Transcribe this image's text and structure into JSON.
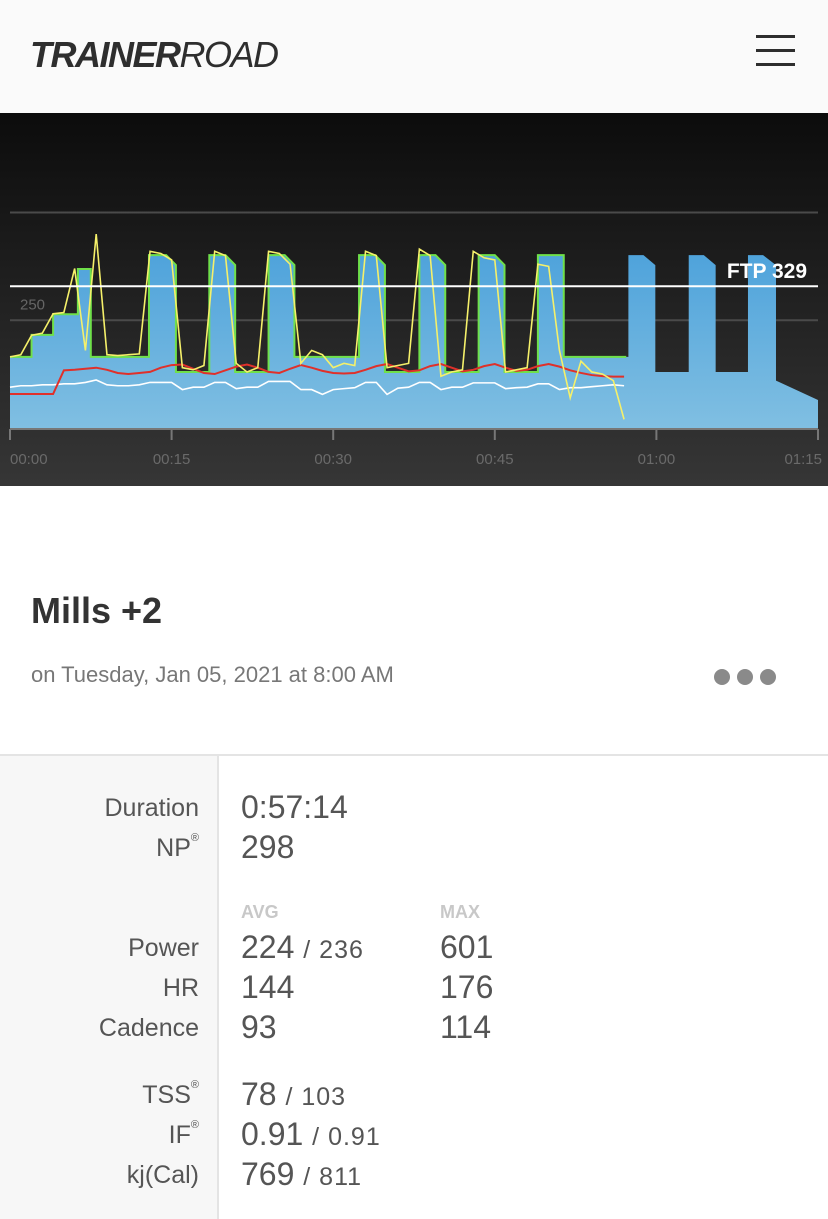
{
  "header": {
    "logo_bold": "TRAINER",
    "logo_light": "ROAD",
    "menu_icon": "hamburger-icon"
  },
  "chart_data": {
    "type": "area",
    "title": "",
    "ftp_label": "FTP 329",
    "ftp": 329,
    "ylim": [
      0,
      505
    ],
    "y_gridlines": [
      250,
      500
    ],
    "y_tick_labels": [
      "250"
    ],
    "xlim": [
      0,
      75
    ],
    "x_ticks": [
      0,
      15,
      30,
      45,
      60,
      75
    ],
    "x_tick_labels": [
      "00:00",
      "00:15",
      "00:30",
      "00:45",
      "01:00",
      "01:15"
    ],
    "xlabel": "",
    "ylabel": "",
    "colors": {
      "target": "#5aaade",
      "target_line": "#6fe04a",
      "power": "#f5f06a",
      "hr": "#e0302a",
      "cadence": "#ffffff"
    },
    "target_profile": [
      [
        0,
        165
      ],
      [
        2,
        165
      ],
      [
        2,
        216
      ],
      [
        4,
        216
      ],
      [
        4,
        264
      ],
      [
        6.3,
        264
      ],
      [
        6.3,
        369
      ],
      [
        7.5,
        369
      ],
      [
        7.5,
        165
      ],
      [
        12.9,
        165
      ],
      [
        12.9,
        401
      ],
      [
        14.5,
        401
      ],
      [
        15.4,
        378
      ],
      [
        15.4,
        130
      ],
      [
        18.5,
        130
      ],
      [
        18.5,
        401
      ],
      [
        20,
        401
      ],
      [
        20.9,
        378
      ],
      [
        20.9,
        130
      ],
      [
        24,
        130
      ],
      [
        24,
        401
      ],
      [
        25.5,
        401
      ],
      [
        26.4,
        378
      ],
      [
        26.4,
        165
      ],
      [
        32.4,
        165
      ],
      [
        32.4,
        401
      ],
      [
        33.9,
        401
      ],
      [
        34.8,
        378
      ],
      [
        34.8,
        130
      ],
      [
        38,
        130
      ],
      [
        38,
        401
      ],
      [
        39.5,
        401
      ],
      [
        40.4,
        378
      ],
      [
        40.4,
        130
      ],
      [
        43.5,
        130
      ],
      [
        43.5,
        401
      ],
      [
        45,
        401
      ],
      [
        45.9,
        378
      ],
      [
        45.9,
        130
      ],
      [
        49,
        130
      ],
      [
        49,
        401
      ],
      [
        51.4,
        401
      ],
      [
        51.4,
        165
      ],
      [
        57.4,
        165
      ],
      [
        57.4,
        401
      ],
      [
        58.8,
        401
      ],
      [
        59.9,
        378
      ],
      [
        59.9,
        130
      ],
      [
        63,
        130
      ],
      [
        63,
        401
      ],
      [
        64.4,
        401
      ],
      [
        65.5,
        378
      ],
      [
        65.5,
        130
      ],
      [
        68.5,
        130
      ],
      [
        68.5,
        401
      ],
      [
        69.9,
        401
      ],
      [
        71.1,
        378
      ],
      [
        71.1,
        110
      ],
      [
        75,
        65
      ]
    ],
    "completed_minutes": 57.2,
    "power": [
      165,
      170,
      215,
      220,
      265,
      268,
      370,
      180,
      450,
      170,
      168,
      170,
      172,
      410,
      405,
      390,
      140,
      135,
      145,
      410,
      400,
      150,
      130,
      140,
      410,
      405,
      380,
      150,
      180,
      170,
      140,
      150,
      145,
      410,
      400,
      140,
      145,
      150,
      415,
      400,
      120,
      130,
      135,
      410,
      395,
      390,
      130,
      135,
      140,
      380,
      375,
      180,
      70,
      155,
      130,
      125,
      110,
      20
    ],
    "hr": [
      100,
      100,
      100,
      100,
      100,
      145,
      146,
      148,
      150,
      146,
      140,
      138,
      140,
      142,
      150,
      155,
      156,
      148,
      140,
      138,
      145,
      152,
      156,
      150,
      142,
      140,
      148,
      155,
      150,
      144,
      140,
      139,
      140,
      146,
      153,
      157,
      150,
      143,
      145,
      153,
      157,
      150,
      143,
      146,
      153,
      157,
      150,
      144,
      146,
      153,
      157,
      152,
      145,
      140,
      136,
      134,
      133,
      133
    ],
    "cadence": [
      85,
      88,
      88,
      90,
      90,
      92,
      92,
      95,
      100,
      90,
      88,
      88,
      90,
      95,
      95,
      95,
      80,
      85,
      85,
      95,
      95,
      82,
      85,
      85,
      97,
      97,
      97,
      80,
      80,
      70,
      80,
      82,
      84,
      95,
      95,
      70,
      83,
      85,
      95,
      95,
      80,
      85,
      85,
      94,
      94,
      94,
      82,
      84,
      85,
      92,
      92,
      80,
      84,
      84,
      86,
      88,
      90,
      88
    ]
  },
  "workout": {
    "title": "Mills +2",
    "date": "on Tuesday, Jan 05, 2021 at 8:00 AM",
    "more_icon": "more-dots-icon"
  },
  "stats": {
    "duration_label": "Duration",
    "duration": "0:57:14",
    "np_label": "NP",
    "np": "298",
    "reg": "®",
    "avg_header": "AVG",
    "max_header": "MAX",
    "power_label": "Power",
    "power_avg": "224",
    "power_target": "/ 236",
    "power_max": "601",
    "hr_label": "HR",
    "hr_avg": "144",
    "hr_max": "176",
    "cadence_label": "Cadence",
    "cadence_avg": "93",
    "cadence_max": "114",
    "tss_label": "TSS",
    "tss": "78",
    "tss_target": "/ 103",
    "if_label": "IF",
    "if": "0.91",
    "if_target": "/ 0.91",
    "kj_label": "kj(Cal)",
    "kj": "769",
    "kj_target": "/ 811"
  }
}
